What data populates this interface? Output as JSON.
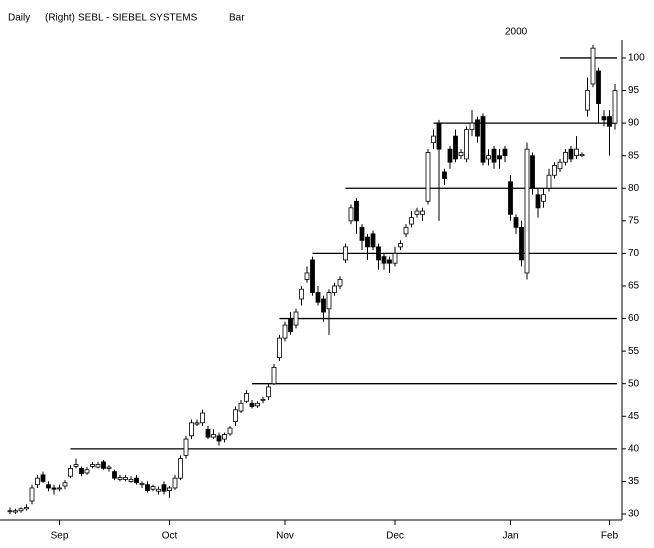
{
  "chart_data": {
    "type": "candlestick",
    "header": {
      "period": "Daily",
      "axis_side": "(Right)",
      "symbol": "SEBL - SIEBEL SYSTEMS",
      "style": "Bar"
    },
    "year_label": "2000",
    "categories": [
      null,
      null,
      null,
      null,
      null,
      null,
      null,
      null,
      null,
      "Sep",
      null,
      null,
      null,
      null,
      null,
      null,
      null,
      null,
      null,
      null,
      null,
      null,
      null,
      null,
      null,
      null,
      null,
      null,
      null,
      "Oct",
      null,
      null,
      null,
      null,
      null,
      null,
      null,
      null,
      null,
      null,
      null,
      null,
      null,
      null,
      null,
      null,
      null,
      null,
      null,
      null,
      "Nov",
      null,
      null,
      null,
      null,
      null,
      null,
      null,
      null,
      null,
      null,
      null,
      null,
      null,
      null,
      null,
      null,
      null,
      null,
      null,
      "Dec",
      null,
      null,
      null,
      null,
      null,
      null,
      null,
      null,
      null,
      null,
      null,
      null,
      null,
      null,
      null,
      null,
      null,
      null,
      null,
      null,
      "Jan",
      null,
      null,
      null,
      null,
      null,
      null,
      null,
      null,
      null,
      null,
      null,
      null,
      null,
      null,
      null,
      null,
      null,
      "Feb",
      null
    ],
    "open": [
      30.5,
      30.3,
      30.5,
      30.8,
      32,
      34.5,
      36,
      34.5,
      34,
      34,
      34.3,
      35.8,
      37.3,
      37,
      36.3,
      37.3,
      37.2,
      38,
      37,
      36.5,
      35.3,
      35.3,
      35,
      35.5,
      34.5,
      34.5,
      33.8,
      33.5,
      34.5,
      33.6,
      34,
      35.5,
      39,
      42,
      43.8,
      44,
      43,
      41.8,
      42,
      41.5,
      42.3,
      44.2,
      45.8,
      47.3,
      47,
      46.6,
      47.5,
      48,
      50,
      54,
      57,
      60,
      59,
      63,
      66,
      69,
      64,
      63,
      61.5,
      64,
      65,
      69,
      75,
      78,
      74,
      72.5,
      73,
      71,
      69.5,
      69,
      68.5,
      71,
      73,
      74.5,
      76,
      76,
      78,
      87,
      90,
      82.5,
      86,
      88,
      85,
      84.5,
      89,
      90.5,
      91,
      84.5,
      86,
      85,
      86,
      81,
      75.5,
      74,
      67,
      85,
      79,
      78,
      80,
      82,
      83,
      84,
      86,
      85,
      85,
      92,
      96,
      98,
      91,
      91,
      90
    ],
    "high": [
      31,
      30.8,
      31,
      31.5,
      34.5,
      36,
      36.5,
      35,
      34.5,
      34.5,
      35.2,
      37.5,
      38.5,
      37.3,
      37.2,
      38,
      38,
      38.3,
      37.5,
      36.8,
      36,
      36,
      35.8,
      36,
      35,
      35,
      34.5,
      34.2,
      35,
      34.3,
      36,
      39,
      42,
      44.5,
      44.5,
      46,
      43.5,
      43,
      42.5,
      42.5,
      43.5,
      46.5,
      47.5,
      49,
      47.5,
      47.3,
      48,
      50,
      53,
      57.5,
      59.5,
      61,
      61.5,
      65,
      68,
      69.5,
      65,
      63.5,
      64.5,
      65.5,
      66.5,
      71.5,
      77.5,
      78.5,
      74.5,
      73,
      73.5,
      71.5,
      70,
      69.5,
      71,
      72,
      74.5,
      76.5,
      77,
      77,
      86,
      89,
      90.5,
      83,
      86.5,
      89,
      86,
      89.5,
      92,
      91,
      91.5,
      86,
      86.5,
      86,
      86.5,
      82,
      76,
      75,
      87,
      85.5,
      80,
      80,
      83,
      84,
      84.5,
      86,
      86.5,
      88,
      85.5,
      97,
      102,
      98.5,
      92,
      92,
      96
    ],
    "low": [
      30,
      30,
      30.2,
      30.5,
      31.5,
      34,
      34.8,
      33.5,
      33,
      33.5,
      33.8,
      35.5,
      37,
      35.8,
      36,
      37,
      37,
      36.8,
      36.5,
      35.2,
      35,
      35,
      34.8,
      34.5,
      34,
      33.3,
      33.5,
      33,
      33,
      32.5,
      33.7,
      35.2,
      38.5,
      41.5,
      43.5,
      43.5,
      41.5,
      41.5,
      40.5,
      41,
      42,
      43.5,
      45.5,
      47,
      46.2,
      46.3,
      47,
      47.5,
      49.8,
      53.5,
      56.5,
      57.5,
      58.5,
      62,
      65.5,
      63.5,
      62,
      59.5,
      57.5,
      63.5,
      64.5,
      68.5,
      74.5,
      73,
      70.5,
      69,
      70.5,
      67.5,
      67.5,
      67,
      68,
      70.5,
      72.5,
      74,
      75.5,
      75,
      77.5,
      86,
      75,
      80.5,
      83,
      84,
      84.5,
      84,
      88,
      87,
      83.5,
      83.5,
      83,
      83,
      84,
      75,
      73,
      68,
      66,
      79,
      75.5,
      77,
      79.5,
      81.5,
      82.5,
      83.5,
      84,
      84.5,
      84.8,
      91,
      95.5,
      90,
      89.5,
      85,
      89
    ],
    "close": [
      30.5,
      30.5,
      30.8,
      31,
      34,
      35.5,
      35,
      34,
      33.8,
      34,
      34.8,
      37,
      37.6,
      36.2,
      36.8,
      37.6,
      37.6,
      37,
      37.2,
      35.5,
      35.6,
      35.6,
      35.3,
      34.8,
      34.7,
      33.6,
      34.2,
      33.8,
      33.5,
      34,
      35.5,
      38.5,
      41.5,
      44,
      44,
      45.5,
      41.8,
      42.2,
      41.2,
      42.2,
      43.2,
      46,
      47,
      48.5,
      46.5,
      47,
      47.6,
      49.5,
      52.5,
      57,
      59,
      58,
      61,
      64.5,
      67,
      64,
      62.5,
      61,
      64,
      65,
      66,
      71,
      77,
      75,
      72,
      71,
      71,
      69,
      68.5,
      68.5,
      70,
      71.5,
      74,
      75.5,
      76.5,
      76.5,
      85.5,
      88,
      86,
      81.5,
      84,
      84.5,
      85.5,
      89,
      90,
      88,
      84,
      85,
      84,
      84.5,
      85,
      76,
      74,
      69,
      86,
      80,
      77,
      79,
      82,
      83.5,
      84,
      85.5,
      84.5,
      86,
      85.2,
      95,
      101.5,
      93,
      90.5,
      89.5,
      95
    ],
    "up_color": "#ffffff",
    "down_color": "#000000",
    "level_lines": [
      {
        "value": 40,
        "from": 11
      },
      {
        "value": 50,
        "from": 44
      },
      {
        "value": 60,
        "from": 49
      },
      {
        "value": 70,
        "from": 55
      },
      {
        "value": 80,
        "from": 61
      },
      {
        "value": 90,
        "from": 77
      },
      {
        "value": 100,
        "from": 100
      }
    ],
    "ylim": [
      30,
      100.5
    ],
    "yticks": [
      30,
      35,
      40,
      45,
      50,
      55,
      60,
      65,
      70,
      75,
      80,
      85,
      90,
      95,
      100
    ]
  }
}
